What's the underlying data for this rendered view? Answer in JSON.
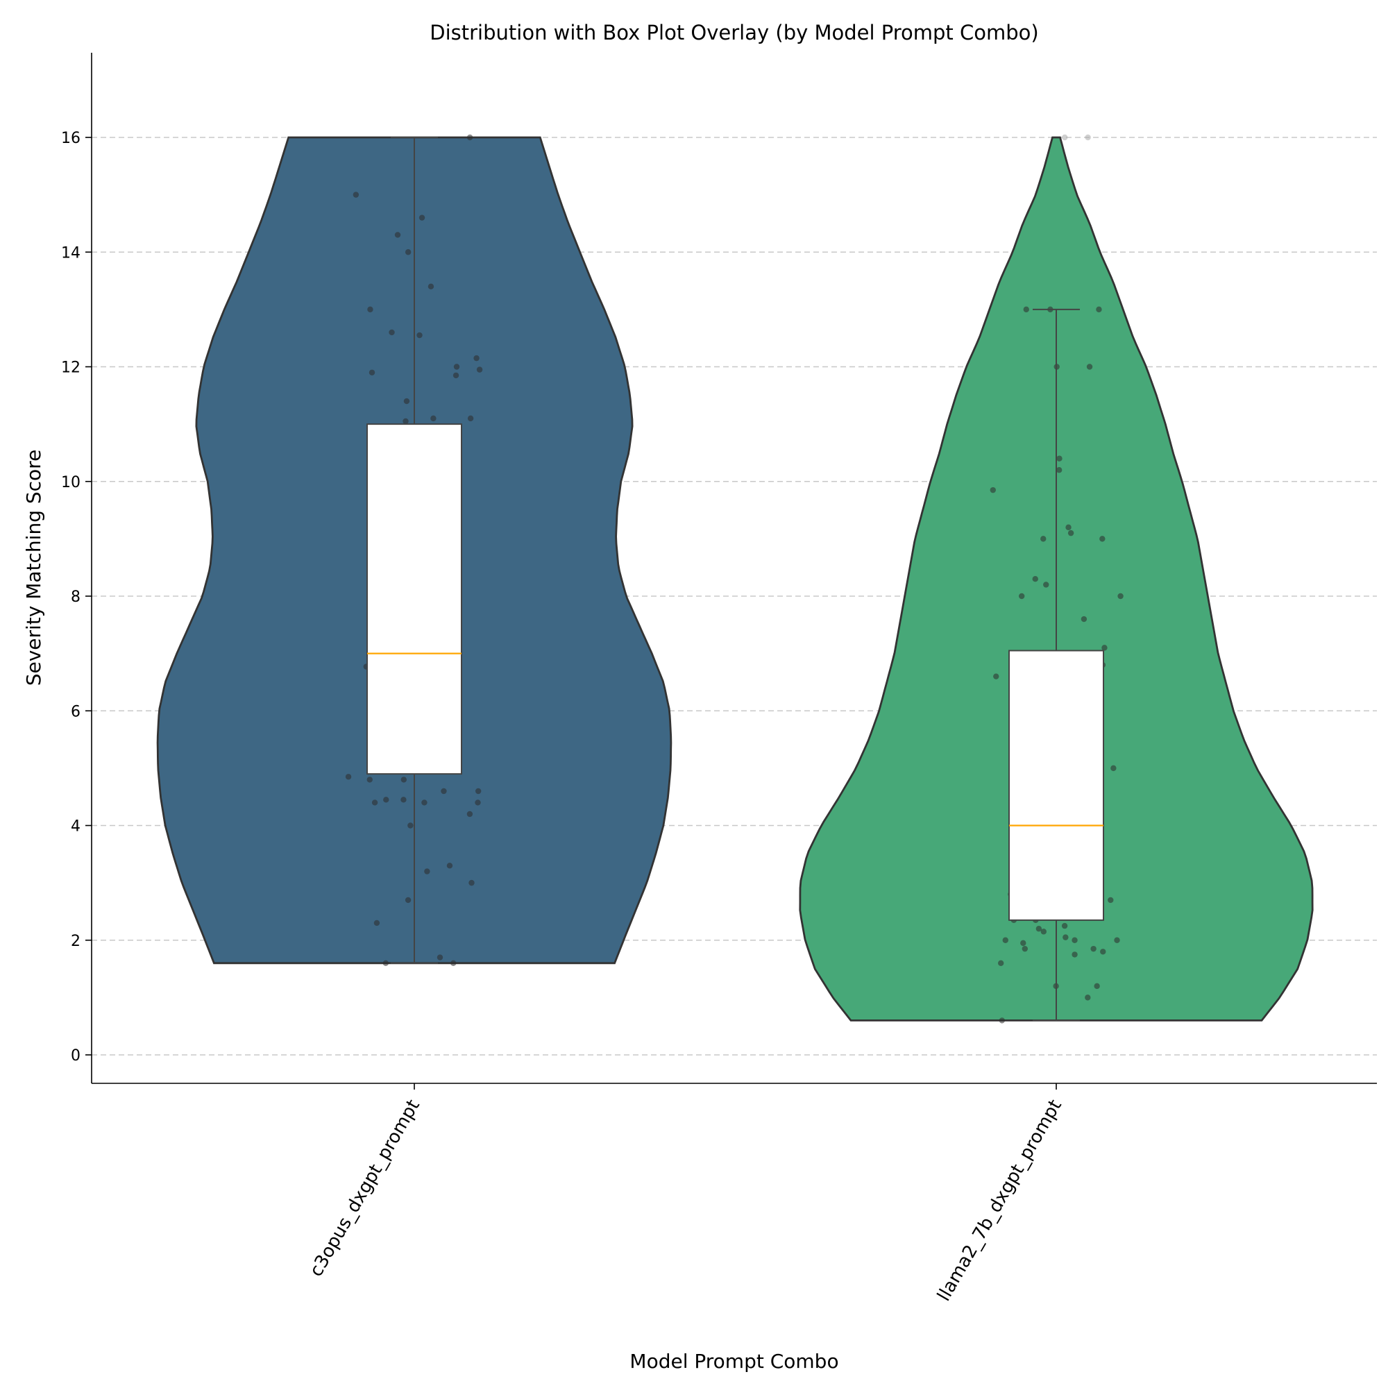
{
  "chart_data": {
    "type": "violin",
    "title": "Distribution with Box Plot Overlay (by Model Prompt Combo)",
    "xlabel": "Model Prompt Combo",
    "ylabel": "Severity Matching Score",
    "ylim": [
      -0.5,
      17.5
    ],
    "yticks": [
      0,
      2,
      4,
      6,
      8,
      10,
      12,
      14,
      16
    ],
    "grid": "y-dashed",
    "colors": {
      "median": "#ffa500",
      "points": "#2b2b2b",
      "outlier_points": "#aaaaaa"
    },
    "categories": [
      "c3opus_dxgpt_prompt",
      "llama2_7b_dxgpt_prompt"
    ],
    "series": [
      {
        "category": "c3opus_dxgpt_prompt",
        "color": "#3e6784",
        "box": {
          "whisker_low": 1.6,
          "q1": 4.9,
          "median": 7.0,
          "q3": 11.0,
          "whisker_high": 16.0
        },
        "violin_range": [
          1.6,
          16.0
        ],
        "violin_profile": [
          [
            1.6,
            0.22
          ],
          [
            2.0,
            0.185
          ],
          [
            2.5,
            0.14
          ],
          [
            3.0,
            0.095
          ],
          [
            3.5,
            0.06
          ],
          [
            4.0,
            0.03
          ],
          [
            4.5,
            0.012
          ],
          [
            5.0,
            0.002
          ],
          [
            5.5,
            0.0
          ],
          [
            6.0,
            0.006
          ],
          [
            6.5,
            0.03
          ],
          [
            7.0,
            0.075
          ],
          [
            7.5,
            0.125
          ],
          [
            8.0,
            0.175
          ],
          [
            8.5,
            0.205
          ],
          [
            9.0,
            0.215
          ],
          [
            9.5,
            0.21
          ],
          [
            10.0,
            0.195
          ],
          [
            10.5,
            0.165
          ],
          [
            11.0,
            0.15
          ],
          [
            11.5,
            0.16
          ],
          [
            12.0,
            0.18
          ],
          [
            12.5,
            0.215
          ],
          [
            13.0,
            0.26
          ],
          [
            13.5,
            0.31
          ],
          [
            14.0,
            0.355
          ],
          [
            14.5,
            0.4
          ],
          [
            15.0,
            0.44
          ],
          [
            15.5,
            0.475
          ],
          [
            16.0,
            0.51
          ]
        ],
        "points": [
          16.0,
          15.0,
          14.6,
          14.3,
          14.0,
          13.4,
          13.0,
          12.6,
          12.55,
          12.15,
          12.0,
          11.9,
          11.95,
          11.85,
          11.4,
          11.1,
          11.05,
          11.1,
          10.85,
          10.25,
          10.2,
          8.9,
          6.8,
          6.77,
          5.65,
          5.4,
          4.85,
          4.8,
          4.8,
          4.6,
          4.6,
          4.45,
          4.45,
          4.4,
          4.4,
          4.4,
          4.2,
          4.0,
          3.3,
          3.2,
          3.0,
          2.7,
          2.3,
          1.7,
          1.6,
          1.6
        ]
      },
      {
        "category": "llama2_7b_dxgpt_prompt",
        "color": "#47a878",
        "box": {
          "whisker_low": 0.6,
          "q1": 2.35,
          "median": 4.0,
          "q3": 7.05,
          "whisker_high": 13.0
        },
        "violin_range": [
          0.6,
          16.0
        ],
        "violin_profile": [
          [
            0.6,
            0.2
          ],
          [
            1.0,
            0.13
          ],
          [
            1.5,
            0.06
          ],
          [
            2.0,
            0.022
          ],
          [
            2.5,
            0.002
          ],
          [
            3.0,
            0.003
          ],
          [
            3.5,
            0.03
          ],
          [
            4.0,
            0.085
          ],
          [
            4.5,
            0.155
          ],
          [
            5.0,
            0.22
          ],
          [
            5.5,
            0.27
          ],
          [
            6.0,
            0.31
          ],
          [
            6.5,
            0.34
          ],
          [
            7.0,
            0.37
          ],
          [
            7.5,
            0.39
          ],
          [
            8.0,
            0.41
          ],
          [
            8.5,
            0.43
          ],
          [
            9.0,
            0.45
          ],
          [
            9.5,
            0.48
          ],
          [
            10.0,
            0.51
          ],
          [
            10.5,
            0.545
          ],
          [
            11.0,
            0.575
          ],
          [
            11.5,
            0.61
          ],
          [
            12.0,
            0.65
          ],
          [
            12.5,
            0.7
          ],
          [
            13.0,
            0.74
          ],
          [
            13.5,
            0.78
          ],
          [
            14.0,
            0.83
          ],
          [
            14.5,
            0.87
          ],
          [
            15.0,
            0.92
          ],
          [
            15.5,
            0.955
          ],
          [
            16.0,
            0.985
          ]
        ],
        "points": [
          16.0,
          16.0,
          13.0,
          13.0,
          13.0,
          12.0,
          12.0,
          10.4,
          10.2,
          9.85,
          9.2,
          9.1,
          9.0,
          9.0,
          8.3,
          8.2,
          8.0,
          8.0,
          7.6,
          7.1,
          6.8,
          6.6,
          5.8,
          5.0,
          4.6,
          4.0,
          2.8,
          2.7,
          2.35,
          2.35,
          2.25,
          2.2,
          2.15,
          2.05,
          2.0,
          2.0,
          2.0,
          1.95,
          1.85,
          1.85,
          1.8,
          1.75,
          1.6,
          1.2,
          1.2,
          1.0,
          0.6
        ]
      }
    ]
  }
}
